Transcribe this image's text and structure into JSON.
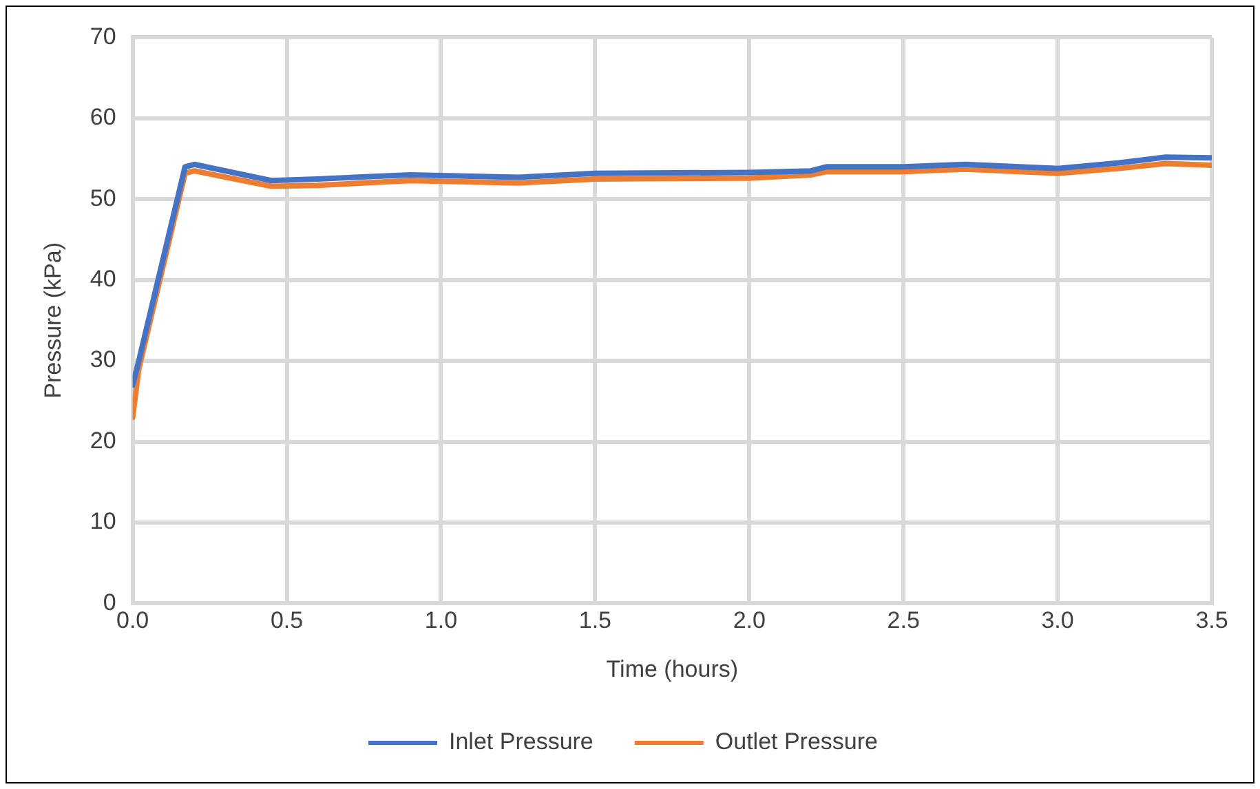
{
  "chart_data": {
    "type": "line",
    "xlabel": "Time (hours)",
    "ylabel": "Pressure (kPa)",
    "xlim": [
      0,
      3.5
    ],
    "xticks": [
      {
        "value": 0,
        "label": "0.0"
      },
      {
        "value": 0.5,
        "label": "0.5"
      },
      {
        "value": 1,
        "label": "1.0"
      },
      {
        "value": 1.5,
        "label": "1.5"
      },
      {
        "value": 2,
        "label": "2.0"
      },
      {
        "value": 2.5,
        "label": "2.5"
      },
      {
        "value": 3,
        "label": "3.0"
      },
      {
        "value": 3.5,
        "label": "3.5"
      }
    ],
    "ylim": [
      0,
      70
    ],
    "yticks": [
      0,
      10,
      20,
      30,
      40,
      50,
      60,
      70
    ],
    "grid": true,
    "legend": "bottom",
    "marker": "none",
    "line_style": "solid",
    "series": [
      {
        "name": "Inlet Pressure",
        "color": "#4472c4",
        "x": [
          0,
          0.02,
          0.17,
          0.2,
          0.45,
          0.6,
          0.9,
          1.25,
          1.5,
          2.0,
          2.2,
          2.25,
          2.5,
          2.7,
          3.0,
          3.2,
          3.35,
          3.5
        ],
        "values": [
          27,
          30,
          54,
          54.3,
          52.3,
          52.5,
          53,
          52.7,
          53.2,
          53.3,
          53.5,
          54,
          54,
          54.3,
          53.8,
          54.5,
          55.2,
          55.1
        ]
      },
      {
        "name": "Outlet Pressure",
        "color": "#ed7d31",
        "x": [
          0,
          0.02,
          0.17,
          0.2,
          0.45,
          0.6,
          0.9,
          1.25,
          1.5,
          2.0,
          2.2,
          2.25,
          2.5,
          2.7,
          3.0,
          3.2,
          3.35,
          3.5
        ],
        "values": [
          23,
          29,
          53.2,
          53.5,
          51.6,
          51.7,
          52.3,
          52,
          52.5,
          52.6,
          53,
          53.4,
          53.4,
          53.7,
          53.2,
          53.8,
          54.4,
          54.2
        ]
      }
    ]
  }
}
